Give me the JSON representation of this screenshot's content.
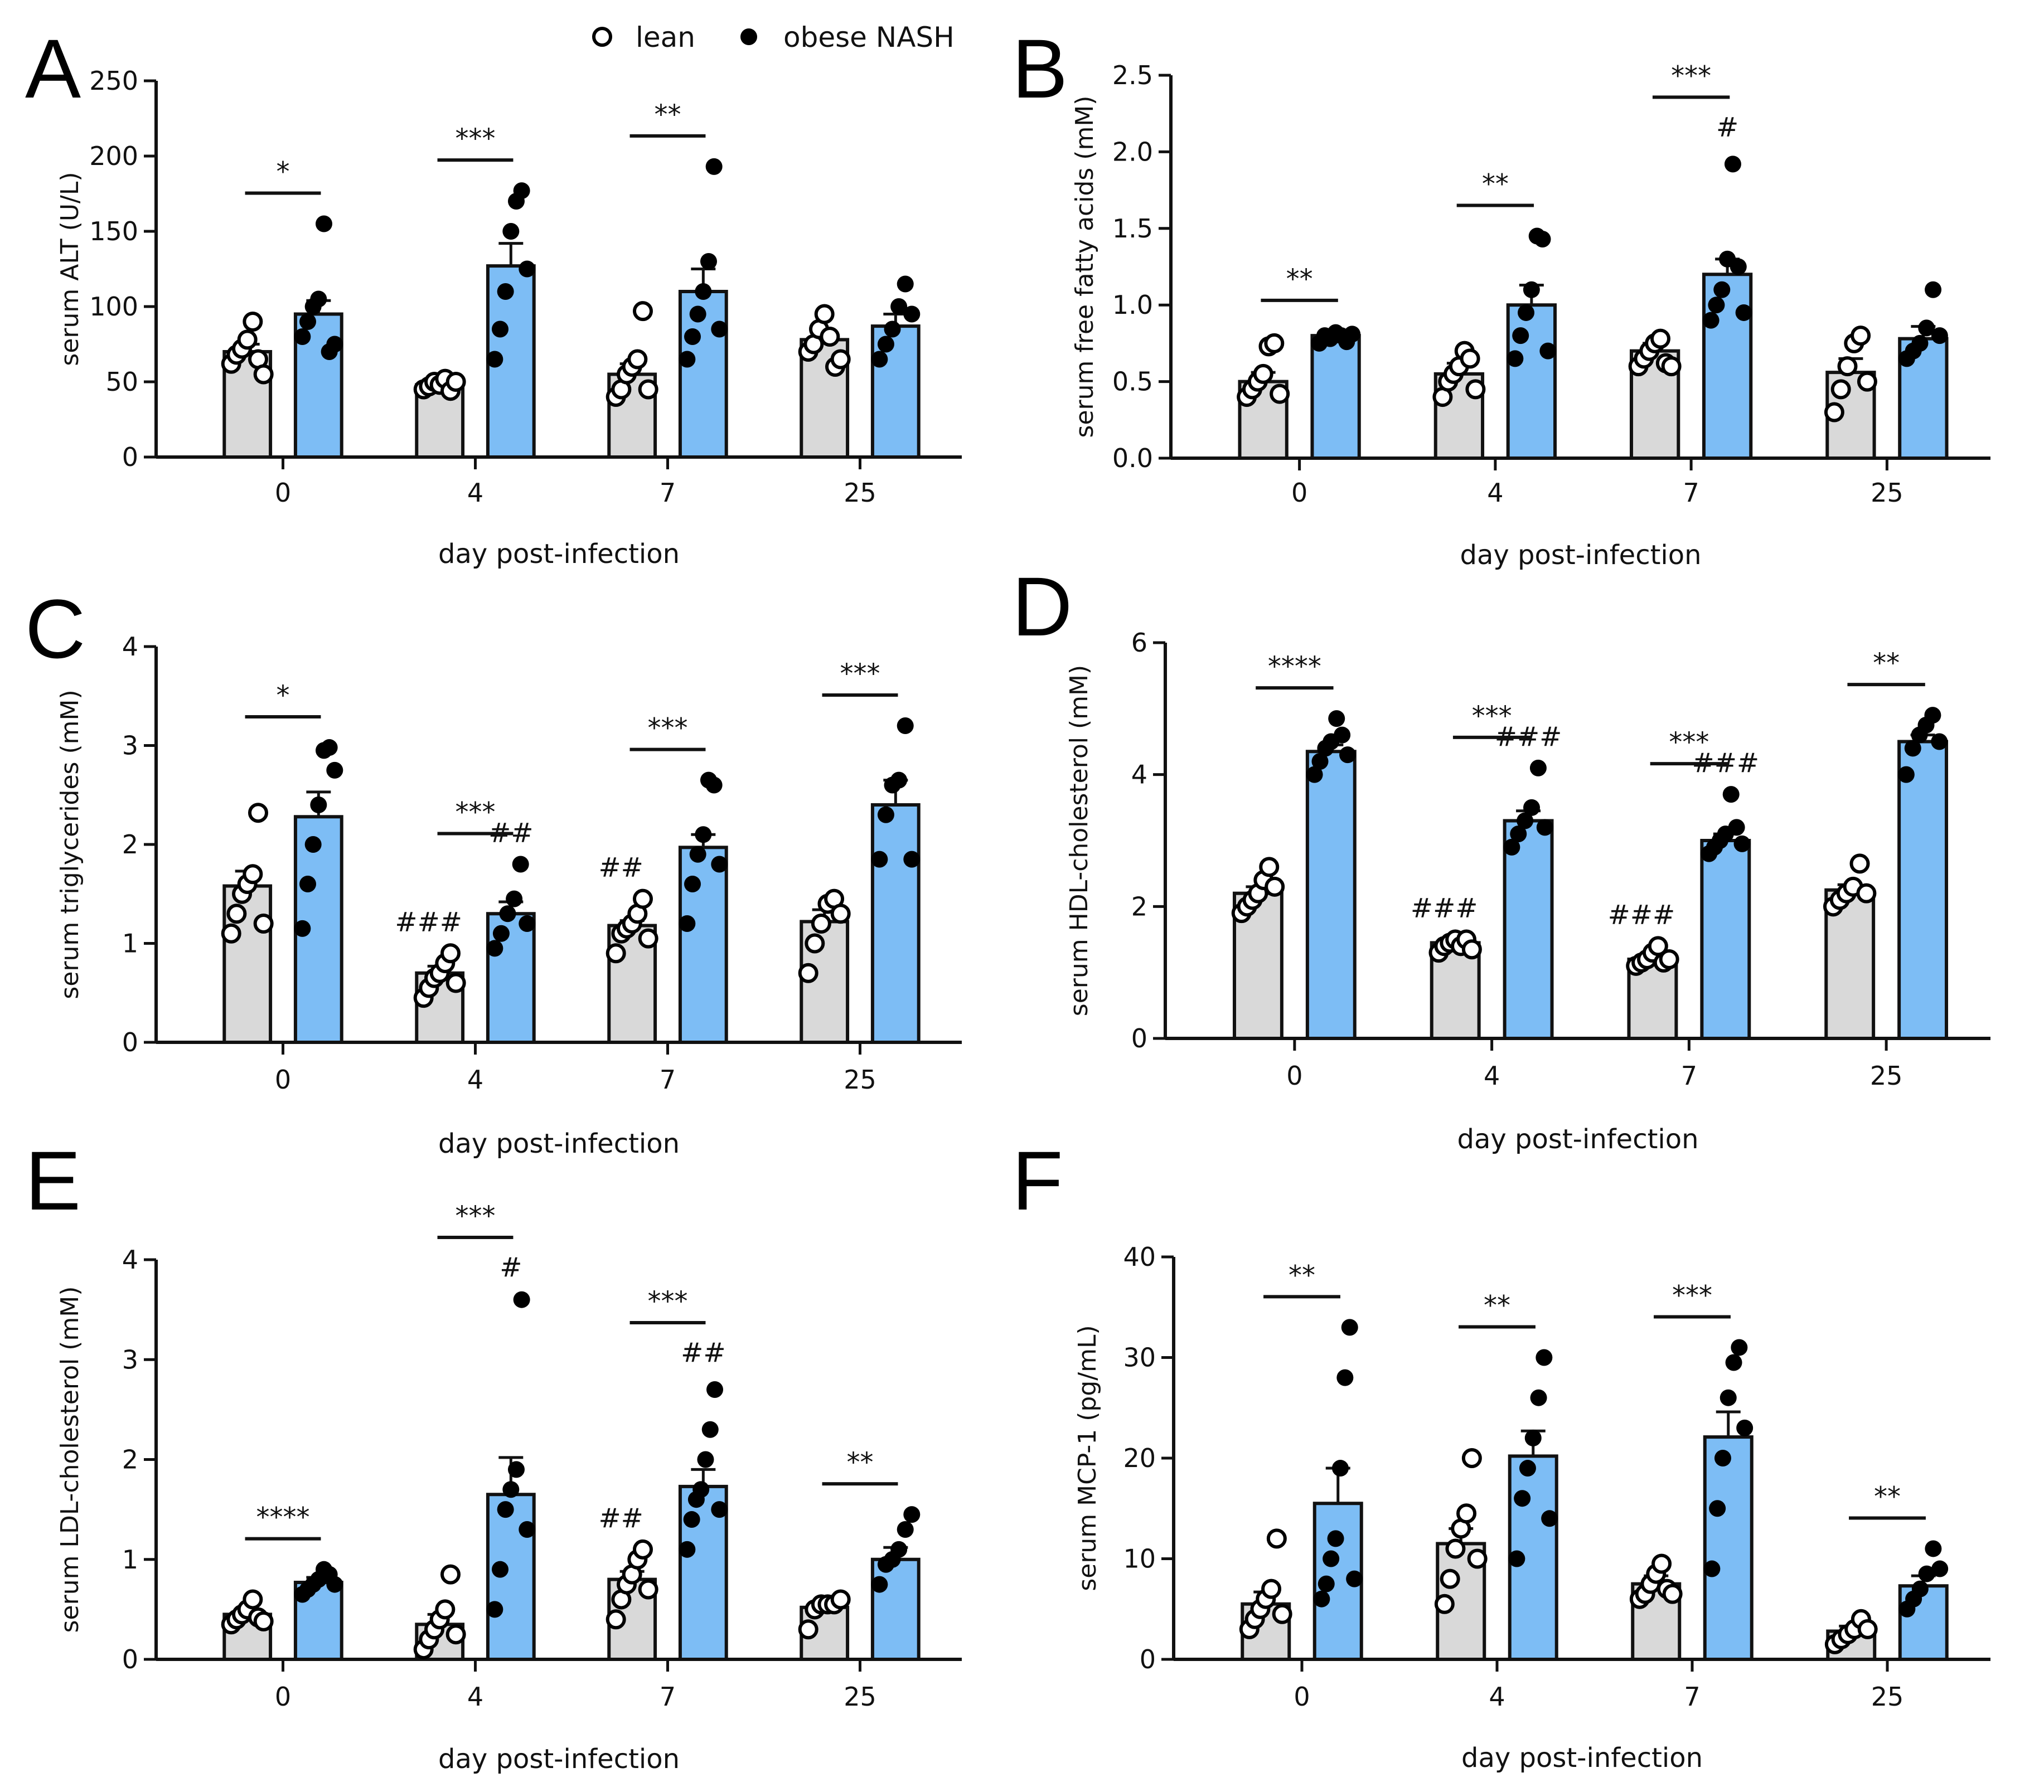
{
  "legend": [
    {
      "label": "lean",
      "marker": "open",
      "color": "#d9d9d9"
    },
    {
      "label": "obese NASH",
      "marker": "filled",
      "color": "#7dbdf5"
    }
  ],
  "colors": {
    "lean_bar": "#d9d9d9",
    "nash_bar": "#7dbdf5",
    "axis": "#111111"
  },
  "chart_data": [
    {
      "panel": "A",
      "type": "bar",
      "ylabel": "serum ALT (U/L)",
      "xlabel": "day post-infection",
      "ylim": [
        0,
        250
      ],
      "yticks": [
        0,
        50,
        100,
        150,
        200,
        250
      ],
      "categories": [
        "0",
        "4",
        "7",
        "25"
      ],
      "series": [
        {
          "name": "lean",
          "values": [
            70,
            48,
            55,
            78
          ],
          "sem": [
            5,
            3,
            7,
            6
          ],
          "points": [
            [
              62,
              68,
              72,
              78,
              90,
              65,
              55
            ],
            [
              45,
              47,
              50,
              48,
              52,
              44,
              50
            ],
            [
              40,
              45,
              55,
              60,
              65,
              97,
              45
            ],
            [
              70,
              75,
              85,
              95,
              80,
              60,
              65
            ]
          ]
        },
        {
          "name": "obese NASH",
          "values": [
            95,
            127,
            110,
            87
          ],
          "sem": [
            9,
            15,
            15,
            8
          ],
          "points": [
            [
              80,
              90,
              100,
              105,
              155,
              70,
              75
            ],
            [
              65,
              85,
              110,
              150,
              170,
              177,
              125
            ],
            [
              65,
              80,
              95,
              110,
              130,
              193,
              85
            ],
            [
              65,
              75,
              85,
              100,
              115,
              95
            ]
          ]
        }
      ],
      "annotations": [
        {
          "group": "0",
          "text": "*"
        },
        {
          "group": "4",
          "text": "***"
        },
        {
          "group": "7",
          "text": "**"
        }
      ]
    },
    {
      "panel": "B",
      "type": "bar",
      "ylabel": "serum free fatty acids (mM)",
      "xlabel": "day post-infection",
      "ylim": [
        0,
        2.5
      ],
      "yticks": [
        0.0,
        0.5,
        1.0,
        1.5,
        2.0,
        2.5
      ],
      "categories": [
        "0",
        "4",
        "7",
        "25"
      ],
      "series": [
        {
          "name": "lean",
          "values": [
            0.5,
            0.55,
            0.7,
            0.56
          ],
          "sem": [
            0.06,
            0.07,
            0.05,
            0.09
          ],
          "points": [
            [
              0.4,
              0.45,
              0.5,
              0.55,
              0.73,
              0.75,
              0.42
            ],
            [
              0.4,
              0.5,
              0.55,
              0.6,
              0.7,
              0.65,
              0.45
            ],
            [
              0.6,
              0.65,
              0.7,
              0.75,
              0.78,
              0.62,
              0.6
            ],
            [
              0.3,
              0.45,
              0.6,
              0.75,
              0.8,
              0.5
            ]
          ]
        },
        {
          "name": "obese NASH",
          "values": [
            0.8,
            1.0,
            1.2,
            0.78
          ],
          "sem": [
            0.03,
            0.13,
            0.1,
            0.08
          ],
          "points": [
            [
              0.75,
              0.8,
              0.78,
              0.82,
              0.8,
              0.76,
              0.81
            ],
            [
              0.65,
              0.8,
              0.95,
              1.1,
              1.45,
              1.43,
              0.7
            ],
            [
              0.9,
              1.0,
              1.1,
              1.3,
              1.92,
              1.25,
              0.95
            ],
            [
              0.65,
              0.7,
              0.75,
              0.85,
              1.1,
              0.8
            ]
          ]
        }
      ],
      "annotations": [
        {
          "group": "0",
          "text": "**"
        },
        {
          "group": "4",
          "text": "**"
        },
        {
          "group": "7",
          "text": "***",
          "extra": "#"
        }
      ]
    },
    {
      "panel": "C",
      "type": "bar",
      "ylabel": "serum triglycerides (mM)",
      "xlabel": "day post-infection",
      "ylim": [
        0,
        4
      ],
      "yticks": [
        0,
        1,
        2,
        3,
        4
      ],
      "categories": [
        "0",
        "4",
        "7",
        "25"
      ],
      "series": [
        {
          "name": "lean",
          "values": [
            1.58,
            0.7,
            1.18,
            1.22
          ],
          "sem": [
            0.15,
            0.07,
            0.05,
            0.12
          ],
          "points": [
            [
              1.1,
              1.3,
              1.5,
              1.6,
              1.7,
              2.32,
              1.2
            ],
            [
              0.45,
              0.55,
              0.65,
              0.7,
              0.8,
              0.9,
              0.6
            ],
            [
              0.9,
              1.1,
              1.15,
              1.2,
              1.3,
              1.45,
              1.05
            ],
            [
              0.7,
              1.0,
              1.2,
              1.4,
              1.45,
              1.3
            ]
          ]
        },
        {
          "name": "obese NASH",
          "values": [
            2.28,
            1.3,
            1.97,
            2.4
          ],
          "sem": [
            0.25,
            0.12,
            0.13,
            0.25
          ],
          "points": [
            [
              1.15,
              1.6,
              2.0,
              2.4,
              2.95,
              2.98,
              2.75
            ],
            [
              0.95,
              1.1,
              1.3,
              1.45,
              1.8,
              1.2
            ],
            [
              1.2,
              1.6,
              1.9,
              2.1,
              2.65,
              2.6,
              1.8
            ],
            [
              1.85,
              2.3,
              2.6,
              2.65,
              3.2,
              1.85
            ]
          ]
        }
      ],
      "annotations": [
        {
          "group": "0",
          "text": "*"
        },
        {
          "group": "4",
          "text": "***",
          "lean_mark": "###",
          "nash_mark": "##"
        },
        {
          "group": "7",
          "text": "***",
          "lean_mark": "##"
        },
        {
          "group": "25",
          "text": "***"
        }
      ]
    },
    {
      "panel": "D",
      "type": "bar",
      "ylabel": "serum HDL-cholesterol (mM)",
      "xlabel": "day post-infection",
      "ylim": [
        0,
        6
      ],
      "yticks": [
        0,
        2,
        4,
        6
      ],
      "categories": [
        "0",
        "4",
        "7",
        "25"
      ],
      "series": [
        {
          "name": "lean",
          "values": [
            2.2,
            1.45,
            1.2,
            2.25
          ],
          "sem": [
            0.1,
            0.05,
            0.05,
            0.08
          ],
          "points": [
            [
              1.9,
              2.0,
              2.1,
              2.2,
              2.4,
              2.6,
              2.3
            ],
            [
              1.3,
              1.4,
              1.45,
              1.5,
              1.4,
              1.5,
              1.35
            ],
            [
              1.1,
              1.15,
              1.2,
              1.3,
              1.4,
              1.15,
              1.2
            ],
            [
              2.0,
              2.1,
              2.2,
              2.3,
              2.65,
              2.2
            ]
          ]
        },
        {
          "name": "obese NASH",
          "values": [
            4.35,
            3.3,
            3.0,
            4.5
          ],
          "sem": [
            0.1,
            0.15,
            0.1,
            0.1
          ],
          "points": [
            [
              4.0,
              4.2,
              4.4,
              4.5,
              4.85,
              4.6,
              4.3
            ],
            [
              2.9,
              3.1,
              3.3,
              3.5,
              4.1,
              3.2
            ],
            [
              2.8,
              2.9,
              3.0,
              3.1,
              3.7,
              3.2,
              2.95
            ],
            [
              4.0,
              4.4,
              4.6,
              4.75,
              4.9,
              4.5
            ]
          ]
        }
      ],
      "annotations": [
        {
          "group": "0",
          "text": "****"
        },
        {
          "group": "4",
          "text": "***",
          "lean_mark": "###",
          "nash_mark": "###"
        },
        {
          "group": "7",
          "text": "***",
          "lean_mark": "###",
          "nash_mark": "###"
        },
        {
          "group": "25",
          "text": "**"
        }
      ]
    },
    {
      "panel": "E",
      "type": "bar",
      "ylabel": "serum LDL-cholesterol (mM)",
      "xlabel": "day post-infection",
      "ylim": [
        0,
        4
      ],
      "yticks": [
        0,
        1,
        2,
        3,
        4
      ],
      "categories": [
        "0",
        "4",
        "7",
        "25"
      ],
      "series": [
        {
          "name": "lean",
          "values": [
            0.45,
            0.35,
            0.8,
            0.52
          ],
          "sem": [
            0.05,
            0.1,
            0.08,
            0.04
          ],
          "points": [
            [
              0.35,
              0.4,
              0.45,
              0.5,
              0.6,
              0.42,
              0.38
            ],
            [
              0.1,
              0.2,
              0.3,
              0.4,
              0.5,
              0.85,
              0.25
            ],
            [
              0.4,
              0.6,
              0.75,
              0.85,
              1.0,
              1.1,
              0.7
            ],
            [
              0.3,
              0.5,
              0.55,
              0.55,
              0.55,
              0.6
            ]
          ]
        },
        {
          "name": "obese NASH",
          "values": [
            0.77,
            1.65,
            1.73,
            1.0
          ],
          "sem": [
            0.05,
            0.37,
            0.17,
            0.12
          ],
          "points": [
            [
              0.65,
              0.7,
              0.75,
              0.8,
              0.9,
              0.85,
              0.75
            ],
            [
              0.5,
              0.9,
              1.5,
              1.7,
              1.9,
              3.6,
              1.3
            ],
            [
              1.1,
              1.4,
              1.6,
              1.7,
              2.0,
              2.3,
              2.7,
              1.5
            ],
            [
              0.75,
              0.95,
              1.0,
              1.1,
              1.3,
              1.45
            ]
          ]
        }
      ],
      "annotations": [
        {
          "group": "0",
          "text": "****"
        },
        {
          "group": "4",
          "text": "***",
          "extra": "#"
        },
        {
          "group": "7",
          "text": "***",
          "lean_mark": "##",
          "extra": "##"
        },
        {
          "group": "25",
          "text": "**"
        }
      ]
    },
    {
      "panel": "F",
      "type": "bar",
      "ylabel": "serum MCP-1 (pg/mL)",
      "xlabel": "day post-infection",
      "ylim": [
        0,
        40
      ],
      "yticks": [
        0,
        10,
        20,
        30,
        40
      ],
      "categories": [
        "0",
        "4",
        "7",
        "25"
      ],
      "series": [
        {
          "name": "lean",
          "values": [
            5.5,
            11.5,
            7.5,
            2.8
          ],
          "sem": [
            1.2,
            1.5,
            0.8,
            0.5
          ],
          "points": [
            [
              3.0,
              4.0,
              5.0,
              6.0,
              7.0,
              12.0,
              4.5
            ],
            [
              5.5,
              8.0,
              11.0,
              13.0,
              14.5,
              20.0,
              10.0
            ],
            [
              6.0,
              6.5,
              7.5,
              8.5,
              9.5,
              7.0,
              6.5
            ],
            [
              1.5,
              2.0,
              2.5,
              3.0,
              4.0,
              3.0
            ]
          ]
        },
        {
          "name": "obese NASH",
          "values": [
            15.5,
            20.2,
            22.1,
            7.3
          ],
          "sem": [
            3.5,
            2.5,
            2.5,
            1.0
          ],
          "points": [
            [
              6.0,
              7.5,
              10.0,
              12.0,
              19.0,
              28.0,
              33.0,
              8.0
            ],
            [
              10.0,
              16.0,
              19.0,
              22.0,
              26.0,
              30.0,
              14.0
            ],
            [
              9.0,
              15.0,
              20.0,
              26.0,
              29.5,
              31.0,
              23.0
            ],
            [
              5.0,
              6.0,
              7.0,
              8.5,
              11.0,
              9.0
            ]
          ]
        }
      ],
      "annotations": [
        {
          "group": "0",
          "text": "**"
        },
        {
          "group": "4",
          "text": "**"
        },
        {
          "group": "7",
          "text": "***"
        },
        {
          "group": "25",
          "text": "**"
        }
      ]
    }
  ]
}
